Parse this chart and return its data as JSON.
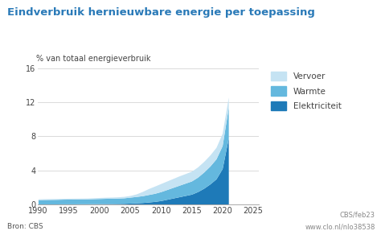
{
  "title": "Eindverbruik hernieuwbare energie per toepassing",
  "ylabel": "% van totaal energieverbruik",
  "background_color": "#ffffff",
  "title_color": "#2a7ab8",
  "title_fontsize": 9.5,
  "ylabel_fontsize": 7,
  "tick_fontsize": 7,
  "xlim": [
    1990,
    2026
  ],
  "ylim": [
    0,
    16
  ],
  "yticks": [
    0,
    4,
    8,
    12,
    16
  ],
  "xticks": [
    1990,
    1995,
    2000,
    2005,
    2010,
    2015,
    2020,
    2025
  ],
  "legend_labels": [
    "Vervoer",
    "Warmte",
    "Elektriciteit"
  ],
  "legend_colors": [
    "#c5e3f3",
    "#64b8de",
    "#1e7ab8"
  ],
  "source_text": "Bron: CBS",
  "credit_text1": "CBS/feb23",
  "credit_text2": "www.clo.nl/nlo38538",
  "years": [
    1990,
    1991,
    1992,
    1993,
    1994,
    1995,
    1996,
    1997,
    1998,
    1999,
    2000,
    2001,
    2002,
    2003,
    2004,
    2005,
    2006,
    2007,
    2008,
    2009,
    2010,
    2011,
    2012,
    2013,
    2014,
    2015,
    2016,
    2017,
    2018,
    2019,
    2020,
    2021,
    2021.01
  ],
  "elektriciteit": [
    0.05,
    0.05,
    0.05,
    0.05,
    0.06,
    0.06,
    0.06,
    0.07,
    0.07,
    0.08,
    0.09,
    0.1,
    0.1,
    0.11,
    0.12,
    0.15,
    0.18,
    0.22,
    0.28,
    0.35,
    0.45,
    0.6,
    0.75,
    0.9,
    1.05,
    1.2,
    1.5,
    1.9,
    2.4,
    3.0,
    4.2,
    7.8,
    0.0
  ],
  "warmte": [
    0.5,
    0.52,
    0.53,
    0.54,
    0.55,
    0.56,
    0.57,
    0.57,
    0.58,
    0.59,
    0.6,
    0.61,
    0.62,
    0.63,
    0.65,
    0.7,
    0.75,
    0.8,
    0.88,
    0.95,
    1.05,
    1.15,
    1.25,
    1.35,
    1.45,
    1.55,
    1.7,
    1.9,
    2.1,
    2.35,
    2.7,
    3.6,
    0.0
  ],
  "vervoer": [
    0.1,
    0.1,
    0.1,
    0.1,
    0.1,
    0.1,
    0.1,
    0.1,
    0.1,
    0.11,
    0.12,
    0.13,
    0.14,
    0.15,
    0.17,
    0.2,
    0.3,
    0.5,
    0.7,
    0.85,
    0.95,
    1.0,
    1.05,
    1.1,
    1.12,
    1.15,
    1.2,
    1.25,
    1.3,
    1.35,
    1.45,
    1.2,
    0.0
  ]
}
